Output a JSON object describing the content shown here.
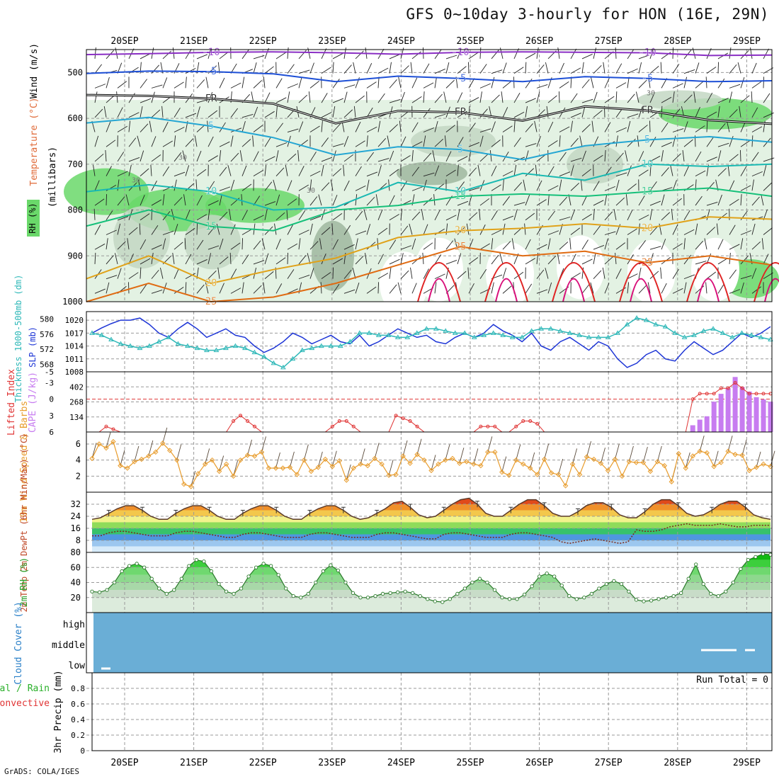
{
  "title": "GFS 0~10day 3-hourly for HON (16E, 29N)",
  "footer": "GrADS: COLA/IGES",
  "colors": {
    "purple": "#8a2fc4",
    "blue": "#1d4fd6",
    "cyan": "#24a6d3",
    "teal": "#19b9b2",
    "green": "#16c07a",
    "orange": "#e0a21a",
    "dark_orange": "#e06b12",
    "red": "#e02424",
    "magenta": "#d8107a",
    "rh_light": "#e3f2e3",
    "rh_mid": "#c3d7c3",
    "rh_dark": "#9fb79f",
    "rh_green": "#6ad86a",
    "slp_line": "#1d35d6",
    "thick_line": "#2eb8b8",
    "lifted": "#e03434",
    "cape_bar": "#c77cf0",
    "wind_line": "#e89c2c",
    "barb": "#5a4a3a",
    "cloud": "#6aaed6",
    "precip_grid": "#999999"
  },
  "chart_data": [
    {
      "type": "contour",
      "name": "upper_air",
      "date_labels": [
        "20SEP",
        "21SEP",
        "22SEP",
        "23SEP",
        "24SEP",
        "25SEP",
        "26SEP",
        "27SEP",
        "28SEP",
        "29SEP"
      ],
      "ylabel": "(millibars)",
      "side_labels": [
        "Temperature (°C)",
        "Wind (m/s)",
        "RH (%)"
      ],
      "y_ticks": [
        500,
        600,
        700,
        800,
        900,
        1000
      ],
      "ylim": [
        450,
        1000
      ],
      "rh_label_values": [
        "30",
        "30",
        "30",
        "30"
      ],
      "isotherms": [
        {
          "value": -10,
          "label": "-10",
          "color": "purple",
          "levels": [
            461,
            459,
            456,
            455,
            457,
            460,
            456,
            455,
            456,
            457,
            463,
            462
          ]
        },
        {
          "value": -5,
          "label": "-5",
          "color": "blue",
          "levels": [
            502,
            497,
            498,
            503,
            520,
            508,
            513,
            520,
            509,
            513,
            520,
            518
          ]
        },
        {
          "value": 0,
          "label": "FR",
          "color": "black",
          "levels": [
            549,
            551,
            557,
            568,
            611,
            584,
            587,
            605,
            574,
            583,
            604,
            612
          ]
        },
        {
          "value": 5,
          "label": "5",
          "color": "cyan",
          "levels": [
            610,
            598,
            617,
            642,
            680,
            662,
            668,
            690,
            660,
            647,
            640,
            652
          ]
        },
        {
          "value": 10,
          "label": "10",
          "color": "teal",
          "levels": [
            760,
            745,
            760,
            800,
            794,
            740,
            760,
            720,
            735,
            700,
            705,
            700
          ]
        },
        {
          "value": 15,
          "label": "15",
          "color": "green",
          "levels": [
            835,
            800,
            836,
            845,
            800,
            790,
            770,
            765,
            770,
            760,
            752,
            770
          ]
        },
        {
          "value": 20,
          "label": "20",
          "color": "orange",
          "levels": [
            950,
            900,
            960,
            930,
            905,
            860,
            845,
            840,
            830,
            840,
            815,
            820
          ]
        },
        {
          "value": 25,
          "label": "25",
          "color": "dark_orange",
          "levels": [
            1000,
            960,
            1000,
            990,
            960,
            920,
            880,
            900,
            890,
            915,
            900,
            920
          ]
        }
      ]
    },
    {
      "type": "line",
      "name": "thickness_slp",
      "ylabel_left": "Thickness 1000-500mb (dm)",
      "ylabel_right": "SLP (mb)",
      "left_ticks": [
        568,
        572,
        576,
        580
      ],
      "right_ticks": [
        1008,
        1011,
        1014,
        1017,
        1020
      ],
      "ylim_slp": [
        1008,
        1022
      ],
      "series": [
        {
          "name": "SLP",
          "color": "slp_line",
          "marker": "none",
          "values": [
            1017,
            1018.2,
            1019.2,
            1020,
            1020,
            1020.5,
            1019,
            1017,
            1016,
            1018,
            1019.5,
            1018,
            1016,
            1017,
            1018,
            1016.5,
            1016,
            1014,
            1012.5,
            1013.5,
            1015,
            1017,
            1016,
            1014.5,
            1015.5,
            1016.5,
            1015,
            1014.5,
            1016.5,
            1014,
            1015,
            1016.5,
            1018,
            1017,
            1016,
            1016.5,
            1015,
            1014.5,
            1016,
            1017,
            1016,
            1017,
            1019,
            1017.5,
            1016.5,
            1015,
            1017,
            1014,
            1013,
            1015,
            1016,
            1014.5,
            1013,
            1015,
            1014,
            1011,
            1009,
            1010,
            1012,
            1013,
            1011,
            1010.5,
            1013,
            1015,
            1013.5,
            1012,
            1013,
            1015,
            1017,
            1016,
            1017,
            1018.5
          ]
        },
        {
          "name": "Thickness",
          "color": "thick_line",
          "marker": "triangle",
          "values": [
            1017,
            1016.5,
            1015.5,
            1014.5,
            1014,
            1013.5,
            1014,
            1015,
            1016,
            1014.5,
            1014,
            1013.5,
            1013,
            1013,
            1013.5,
            1014,
            1013.5,
            1012.5,
            1011.5,
            1010,
            1009,
            1011,
            1013,
            1013.5,
            1014,
            1014,
            1014,
            1015,
            1017,
            1017,
            1016.5,
            1016.5,
            1016,
            1016,
            1017,
            1018,
            1018,
            1017.5,
            1017,
            1017,
            1016,
            1016.5,
            1017,
            1016.5,
            1016,
            1016,
            1017.5,
            1018,
            1018,
            1017.5,
            1017,
            1016.5,
            1016,
            1016,
            1016,
            1017,
            1019,
            1020.5,
            1020,
            1019,
            1018.5,
            1017,
            1016,
            1016.5,
            1017.5,
            1018,
            1017,
            1016,
            1017,
            1016.5,
            1016,
            1015.5
          ]
        }
      ]
    },
    {
      "type": "bar",
      "name": "lifted_cape",
      "ylabel_left": "Lifted Index",
      "ylabel_right": "CAPE (J/kg)",
      "lifted_ticks": [
        "-5",
        "-3",
        "0",
        "3",
        "6"
      ],
      "cape_ticks": [
        134,
        268,
        402
      ],
      "lifted_ylim": [
        -5,
        6
      ],
      "cape_ylim": [
        0,
        536
      ],
      "lifted_values": [
        6,
        6,
        5,
        5.5,
        6,
        6,
        6,
        6,
        6,
        6,
        6,
        6,
        6,
        6,
        6,
        6,
        6,
        6,
        6,
        6,
        4,
        3,
        4,
        5,
        6,
        6,
        6,
        6,
        6,
        6,
        6,
        6,
        6,
        6,
        5,
        4,
        4,
        5,
        6,
        6,
        6,
        6,
        6,
        3,
        3.5,
        4,
        5,
        6,
        6,
        6,
        6,
        6,
        6,
        6,
        6,
        5,
        5,
        5,
        6,
        6,
        5,
        4,
        4,
        4.5,
        6,
        6,
        6,
        6,
        6,
        6,
        6,
        6,
        6,
        6,
        6,
        6,
        6,
        6,
        6,
        6,
        6,
        6,
        6,
        6,
        6,
        0,
        -1,
        -1,
        -1,
        -2,
        -2,
        -3,
        -2,
        -1,
        -1,
        -1,
        -1
      ],
      "cape_values": [
        0,
        0,
        0,
        0,
        0,
        0,
        0,
        0,
        0,
        0,
        0,
        0,
        0,
        0,
        0,
        0,
        0,
        0,
        0,
        0,
        0,
        0,
        0,
        0,
        0,
        0,
        0,
        0,
        0,
        0,
        0,
        0,
        0,
        0,
        0,
        0,
        0,
        0,
        0,
        0,
        0,
        0,
        0,
        0,
        0,
        0,
        0,
        0,
        0,
        0,
        0,
        0,
        0,
        0,
        0,
        0,
        0,
        0,
        0,
        0,
        0,
        0,
        0,
        0,
        0,
        0,
        0,
        0,
        0,
        0,
        0,
        0,
        0,
        0,
        0,
        0,
        0,
        0,
        0,
        0,
        0,
        0,
        0,
        0,
        0,
        60,
        110,
        140,
        270,
        340,
        390,
        490,
        400,
        360,
        310,
        290,
        270
      ]
    },
    {
      "type": "line",
      "name": "wind_10m",
      "ylabel": "10m Wind Speed & Barbs",
      "y_ticks": [
        2,
        4,
        6
      ],
      "ylim": [
        0,
        7.5
      ],
      "values": [
        4.2,
        6,
        5.5,
        6.3,
        3.3,
        3,
        3.8,
        4.1,
        4.5,
        5,
        6.1,
        5.2,
        4,
        1,
        0.7,
        2.3,
        3.5,
        4,
        2.6,
        3.5,
        2,
        4,
        4.6,
        4.5,
        5,
        3,
        3,
        3,
        3.1,
        2.2,
        4,
        2.6,
        3.1,
        4.1,
        3.2,
        3.9,
        1.5,
        3,
        3.5,
        3.3,
        4.2,
        3.5,
        2.1,
        2.2,
        4.5,
        3.6,
        4.7,
        4,
        2.7,
        3.5,
        4,
        4.2,
        3.6,
        3.8,
        3.5,
        3.3,
        5,
        5,
        2.5,
        2.1,
        4,
        3.5,
        3,
        2.2,
        4.1,
        2.4,
        2.2,
        0.8,
        3.5,
        2.2,
        4.4,
        4.1,
        3.6,
        2.7,
        4.1,
        2,
        3.8,
        3.7,
        3.7,
        2.6,
        3.8,
        3.3,
        1.3,
        4.8,
        3,
        4.5,
        5.1,
        4.9,
        3.2,
        3.7,
        5.1,
        4.7,
        4.6,
        2.7,
        3.1,
        3.5,
        3.2
      ]
    },
    {
      "type": "area",
      "name": "temp_2m",
      "ylabel": "2m Temp 2m DewPt (6hr Min/Max) (°C)",
      "y_ticks": [
        8,
        16,
        24,
        32
      ],
      "ylim": [
        0,
        40
      ],
      "temperature": [
        22,
        23,
        26,
        29,
        31,
        31,
        28,
        24,
        22,
        22,
        26,
        29,
        31,
        31,
        28,
        24,
        22,
        22,
        26,
        29,
        31,
        31,
        28,
        24,
        22,
        22,
        26,
        29,
        31,
        31,
        28,
        24,
        22,
        23,
        26,
        29,
        33,
        34,
        30,
        25,
        23,
        24,
        28,
        32,
        35,
        36,
        32,
        26,
        24,
        24,
        28,
        32,
        35,
        35,
        31,
        26,
        24,
        24,
        27,
        31,
        33,
        33,
        30,
        25,
        23,
        23,
        27,
        32,
        35,
        35,
        31,
        26,
        24,
        25,
        28,
        32,
        34,
        34,
        30,
        25,
        23,
        22
      ],
      "dewpoint": [
        11,
        11,
        13,
        14,
        14,
        13,
        12,
        11,
        11,
        11,
        13,
        14,
        14,
        13,
        12,
        11,
        10,
        10,
        12,
        13,
        13,
        12,
        11,
        10,
        10,
        10,
        12,
        13,
        13,
        12,
        11,
        10,
        10,
        10,
        12,
        13,
        13,
        12,
        11,
        10,
        9,
        9,
        12,
        13,
        13,
        12,
        11,
        10,
        10,
        10,
        12,
        13,
        13,
        12,
        11,
        10,
        7,
        6,
        7,
        8,
        9,
        8,
        7,
        6,
        7,
        15,
        14,
        14,
        15,
        17,
        18,
        19,
        18,
        18,
        18,
        19,
        18,
        17,
        17,
        18,
        18,
        18
      ]
    },
    {
      "type": "area",
      "name": "rh_2m",
      "ylabel": "2m RH (%)",
      "y_ticks": [
        20,
        40,
        60,
        80
      ],
      "ylim": [
        0,
        80
      ],
      "values": [
        28,
        27,
        30,
        40,
        55,
        62,
        65,
        60,
        45,
        32,
        25,
        30,
        45,
        62,
        70,
        68,
        55,
        38,
        28,
        25,
        32,
        48,
        60,
        65,
        62,
        50,
        32,
        22,
        20,
        25,
        40,
        55,
        63,
        56,
        40,
        26,
        20,
        20,
        22,
        25,
        26,
        27,
        28,
        26,
        22,
        18,
        15,
        14,
        18,
        25,
        32,
        40,
        45,
        40,
        30,
        20,
        18,
        18,
        24,
        35,
        48,
        52,
        48,
        36,
        22,
        18,
        20,
        25,
        32,
        38,
        42,
        38,
        28,
        17,
        15,
        16,
        18,
        20,
        22,
        26,
        45,
        64,
        38,
        25,
        22,
        28,
        40,
        58,
        70,
        74,
        78,
        77
      ]
    },
    {
      "type": "bar",
      "name": "cloud_cover",
      "ylabel": "Cloud Cover (%)",
      "levels": [
        "high",
        "middle",
        "low"
      ],
      "coverage_high": 100,
      "coverage_middle": 100,
      "coverage_low": 95
    },
    {
      "type": "line",
      "name": "precip_3hr",
      "ylabel": "3hr Precip (mm)",
      "legend": [
        "Total / Rain",
        "Convective"
      ],
      "run_total": "Run Total = 0",
      "y_ticks": [
        "0",
        "0.2",
        "0.4",
        "0.6",
        "0.8"
      ],
      "ylim": [
        0,
        1
      ],
      "values": []
    }
  ]
}
